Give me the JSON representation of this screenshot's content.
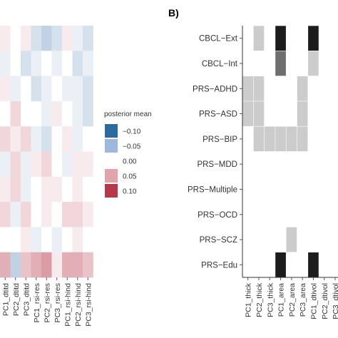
{
  "panel_b_label": "B)",
  "legend": {
    "title": "posterior mean",
    "entries": [
      {
        "label": "−0.10",
        "color": "#2c6aa0"
      },
      {
        "label": "−0.05",
        "color": "#9db8da"
      },
      {
        "label": "0.00",
        "color": "#ffffff"
      },
      {
        "label": "0.05",
        "color": "#e2a3ab"
      },
      {
        "label": "0.10",
        "color": "#b73848"
      }
    ]
  },
  "chart_data": [
    {
      "type": "heatmap",
      "title": "",
      "x_categories": [
        "PC1_dtitd",
        "PC2_dtitd",
        "PC3_dtitd",
        "PC1_rsi-res",
        "PC2_rsi-res",
        "PC3_rsi-res",
        "PC1_rsi-hind",
        "PC2_rsi-hind",
        "PC3_rsi-hind"
      ],
      "n_rows": 10,
      "color_scale": {
        "min": -0.1,
        "max": 0.1
      },
      "values": [
        [
          0.01,
          0.0,
          0.01,
          -0.02,
          -0.03,
          -0.02,
          0.01,
          -0.01,
          -0.02
        ],
        [
          -0.01,
          0.0,
          -0.02,
          -0.01,
          0.0,
          -0.01,
          0.0,
          -0.02,
          -0.01
        ],
        [
          0.01,
          -0.01,
          0.0,
          -0.02,
          -0.01,
          0.0,
          -0.01,
          -0.01,
          -0.02
        ],
        [
          0.0,
          0.02,
          0.0,
          0.0,
          -0.01,
          0.01,
          0.0,
          -0.01,
          -0.02
        ],
        [
          0.02,
          0.01,
          0.02,
          -0.01,
          -0.02,
          0.0,
          0.01,
          -0.01,
          0.0
        ],
        [
          -0.01,
          0.02,
          -0.01,
          0.01,
          0.02,
          0.0,
          -0.01,
          0.01,
          0.01
        ],
        [
          0.01,
          0.02,
          -0.01,
          0.0,
          0.01,
          0.01,
          0.0,
          0.01,
          0.0
        ],
        [
          0.02,
          -0.01,
          0.02,
          0.0,
          0.01,
          0.0,
          0.02,
          0.02,
          0.01
        ],
        [
          0.0,
          0.0,
          0.01,
          -0.01,
          0.0,
          -0.01,
          0.0,
          0.01,
          0.0
        ],
        [
          0.04,
          -0.03,
          0.03,
          0.04,
          0.05,
          0.01,
          0.04,
          0.04,
          0.03
        ]
      ]
    },
    {
      "type": "heatmap",
      "title": "",
      "x_categories": [
        "PC1_thick",
        "PC2_thick",
        "PC3_thick",
        "PC1_area",
        "PC2_area",
        "PC3_area",
        "PC1_dtivol",
        "PC2_dtivol",
        "PC3_dtivol",
        "PC1_dtifa"
      ],
      "y_categories": [
        "CBCL−Ext",
        "CBCL−Int",
        "PRS−ADHD",
        "PRS−ASD",
        "PRS−BIP",
        "PRS−MDD",
        "PRS−Multiple",
        "PRS−OCD",
        "PRS−SCZ",
        "PRS−Edu"
      ],
      "value_meaning": "0 = no cell, 1 = light grey, 2 = dark grey, 3 = black",
      "values": [
        [
          0,
          1,
          0,
          3,
          0,
          0,
          3,
          0,
          0,
          0
        ],
        [
          0,
          0,
          0,
          2,
          0,
          0,
          1,
          0,
          0,
          0
        ],
        [
          1,
          1,
          0,
          0,
          0,
          1,
          0,
          0,
          0,
          0
        ],
        [
          1,
          1,
          0,
          0,
          0,
          1,
          0,
          0,
          0,
          0
        ],
        [
          0,
          1,
          1,
          1,
          1,
          1,
          0,
          0,
          0,
          0
        ],
        [
          0,
          0,
          0,
          0,
          0,
          0,
          0,
          0,
          0,
          0
        ],
        [
          0,
          0,
          0,
          0,
          0,
          0,
          0,
          0,
          0,
          0
        ],
        [
          0,
          0,
          0,
          0,
          0,
          0,
          0,
          0,
          0,
          0
        ],
        [
          0,
          0,
          0,
          0,
          1,
          0,
          0,
          0,
          0,
          0
        ],
        [
          0,
          0,
          0,
          3,
          0,
          0,
          3,
          0,
          0,
          2
        ]
      ],
      "colors": {
        "1": "#cccccc",
        "2": "#6e6e6e",
        "3": "#1c1c1c"
      }
    }
  ]
}
